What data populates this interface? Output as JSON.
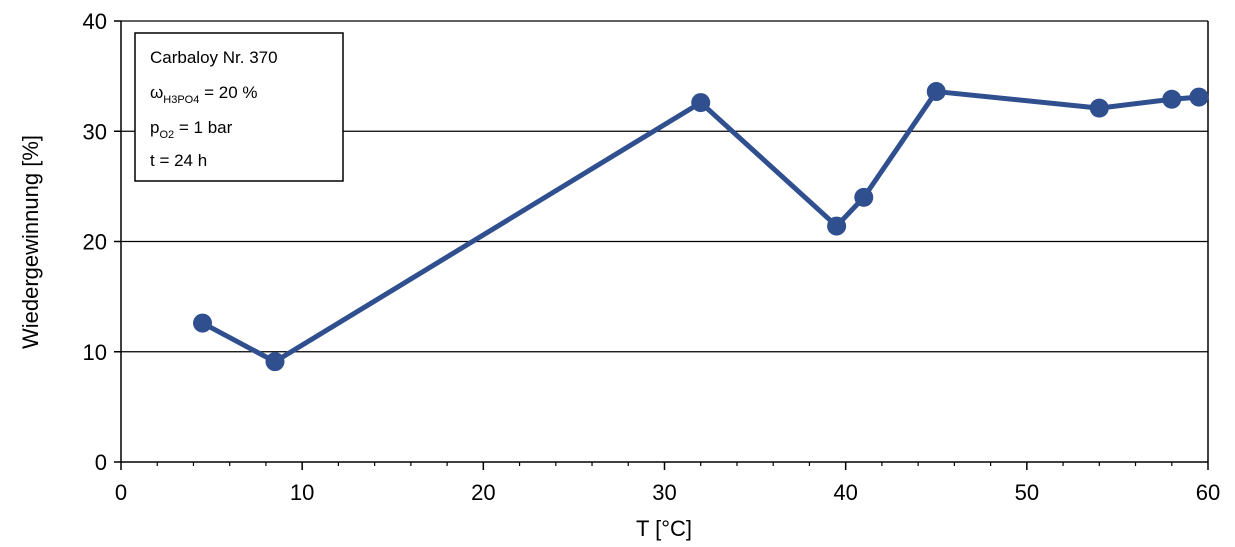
{
  "chart_data": {
    "type": "line",
    "xlabel": "T [°C]",
    "ylabel": "Wiedergewinnung [%]",
    "xlim": [
      0,
      60
    ],
    "ylim": [
      0,
      40
    ],
    "x_ticks": [
      "0",
      "10",
      "20",
      "30",
      "40",
      "50",
      "60"
    ],
    "y_ticks": [
      "0",
      "10",
      "20",
      "30",
      "40"
    ],
    "grid": "horizontal",
    "series": [
      {
        "color": "#2f4f8f",
        "points": [
          {
            "x": 4.5,
            "y": 12.6
          },
          {
            "x": 8.5,
            "y": 9.1
          },
          {
            "x": 32.0,
            "y": 32.6
          },
          {
            "x": 39.5,
            "y": 21.4
          },
          {
            "x": 41.0,
            "y": 24.0
          },
          {
            "x": 45.0,
            "y": 33.6
          },
          {
            "x": 54.0,
            "y": 32.1
          },
          {
            "x": 58.0,
            "y": 32.9
          },
          {
            "x": 59.5,
            "y": 33.1
          }
        ]
      }
    ],
    "annotation": {
      "line1": "Carbaloy Nr. 370",
      "line2_main": "ω",
      "line2_sub": "H3PO4",
      "line2_rest": " = 20 %",
      "line3_main": "p",
      "line3_sub": "O2",
      "line3_rest": " = 1 bar",
      "line4": "t = 24 h"
    }
  }
}
